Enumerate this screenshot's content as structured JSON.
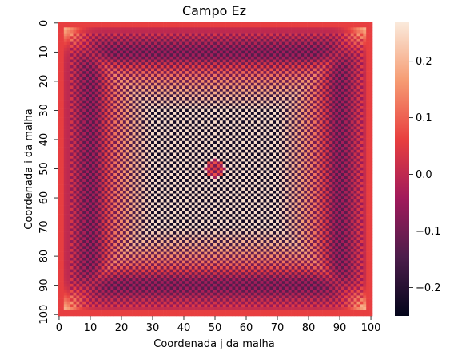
{
  "chart_data": {
    "type": "heatmap",
    "title": "Campo Ez",
    "xlabel": "Coordenada j da malha",
    "ylabel": "Coordenada i da malha",
    "grid_size": [
      101,
      101
    ],
    "x_ticks": [
      "0",
      "10",
      "20",
      "30",
      "40",
      "50",
      "60",
      "70",
      "80",
      "90",
      "100"
    ],
    "y_ticks": [
      "0",
      "10",
      "20",
      "30",
      "40",
      "50",
      "60",
      "70",
      "80",
      "90",
      "100"
    ],
    "x_range": [
      0,
      100
    ],
    "y_range": [
      0,
      100
    ],
    "colorbar": {
      "ticks": [
        "0.2",
        "0.1",
        "0.0",
        "−0.1",
        "−0.2"
      ],
      "tick_values": [
        0.2,
        0.1,
        0.0,
        -0.1,
        -0.2
      ],
      "range": [
        -0.25,
        0.27
      ],
      "colormap": "rocket",
      "colors": [
        "#03051a",
        "#4c1d4b",
        "#a11a5b",
        "#e83f3f",
        "#f69c73",
        "#faebdd"
      ]
    },
    "pattern": {
      "description_free": true,
      "checkerboard_amplitude_center": 0.24,
      "hot_spot": [
        50,
        50
      ]
    }
  }
}
